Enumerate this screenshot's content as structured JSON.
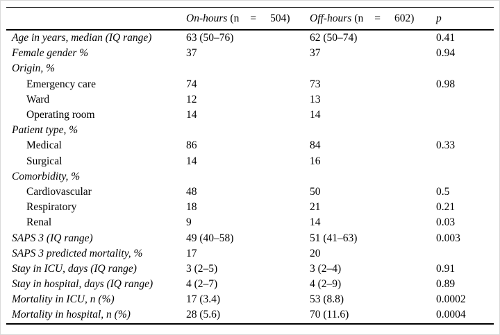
{
  "page": {
    "background_color": "#ffffff",
    "text_color": "#000000",
    "rule_color": "#000000"
  },
  "table": {
    "header": {
      "on_hours": {
        "group": "On-hours",
        "n_open": "(n",
        "eq": "=",
        "n_value": "504)"
      },
      "off_hours": {
        "group": "Off-hours",
        "n_open": "(n",
        "eq": "=",
        "n_value": "602)"
      },
      "p_label": "p"
    },
    "rows": [
      {
        "label": "Age in years, median (IQ range)",
        "style": "italic",
        "on_hours": "63 (50–76)",
        "off_hours": "62 (50–74)",
        "p": "0.41"
      },
      {
        "label": "Female gender %",
        "style": "italic",
        "on_hours": "37",
        "off_hours": "37",
        "p": "0.94"
      },
      {
        "label": "Origin, %",
        "style": "italic",
        "on_hours": "",
        "off_hours": "",
        "p": ""
      },
      {
        "label": "Emergency care",
        "style": "indent",
        "on_hours": "74",
        "off_hours": "73",
        "p": "0.98"
      },
      {
        "label": "Ward",
        "style": "indent",
        "on_hours": "12",
        "off_hours": "13",
        "p": ""
      },
      {
        "label": "Operating room",
        "style": "indent",
        "on_hours": "14",
        "off_hours": "14",
        "p": ""
      },
      {
        "label": "Patient type, %",
        "style": "italic",
        "on_hours": "",
        "off_hours": "",
        "p": ""
      },
      {
        "label": "Medical",
        "style": "indent",
        "on_hours": "86",
        "off_hours": "84",
        "p": "0.33"
      },
      {
        "label": "Surgical",
        "style": "indent",
        "on_hours": "14",
        "off_hours": "16",
        "p": ""
      },
      {
        "label": "Comorbidity, %",
        "style": "italic",
        "on_hours": "",
        "off_hours": "",
        "p": ""
      },
      {
        "label": "Cardiovascular",
        "style": "indent",
        "on_hours": "48",
        "off_hours": "50",
        "p": "0.5"
      },
      {
        "label": "Respiratory",
        "style": "indent",
        "on_hours": "18",
        "off_hours": "21",
        "p": "0.21"
      },
      {
        "label": "Renal",
        "style": "indent",
        "on_hours": "9",
        "off_hours": "14",
        "p": "0.03"
      },
      {
        "label": "SAPS 3 (IQ range)",
        "style": "italic",
        "on_hours": "49 (40–58)",
        "off_hours": "51 (41–63)",
        "p": "0.003"
      },
      {
        "label": "SAPS 3 predicted mortality, %",
        "style": "italic",
        "on_hours": "17",
        "off_hours": "20",
        "p": ""
      },
      {
        "label": "Stay in ICU, days (IQ range)",
        "style": "italic",
        "on_hours": "3 (2–5)",
        "off_hours": "3 (2–4)",
        "p": "0.91"
      },
      {
        "label": "Stay in hospital, days (IQ range)",
        "style": "italic",
        "on_hours": "4 (2–7)",
        "off_hours": "4 (2–9)",
        "p": "0.89"
      },
      {
        "label": "Mortality in ICU, n (%)",
        "style": "italic",
        "on_hours": "17 (3.4)",
        "off_hours": "53 (8.8)",
        "p": "0.0002"
      },
      {
        "label": "Mortality in hospital, n (%)",
        "style": "italic",
        "on_hours": "28 (5.6)",
        "off_hours": "70 (11.6)",
        "p": "0.0004"
      }
    ]
  }
}
